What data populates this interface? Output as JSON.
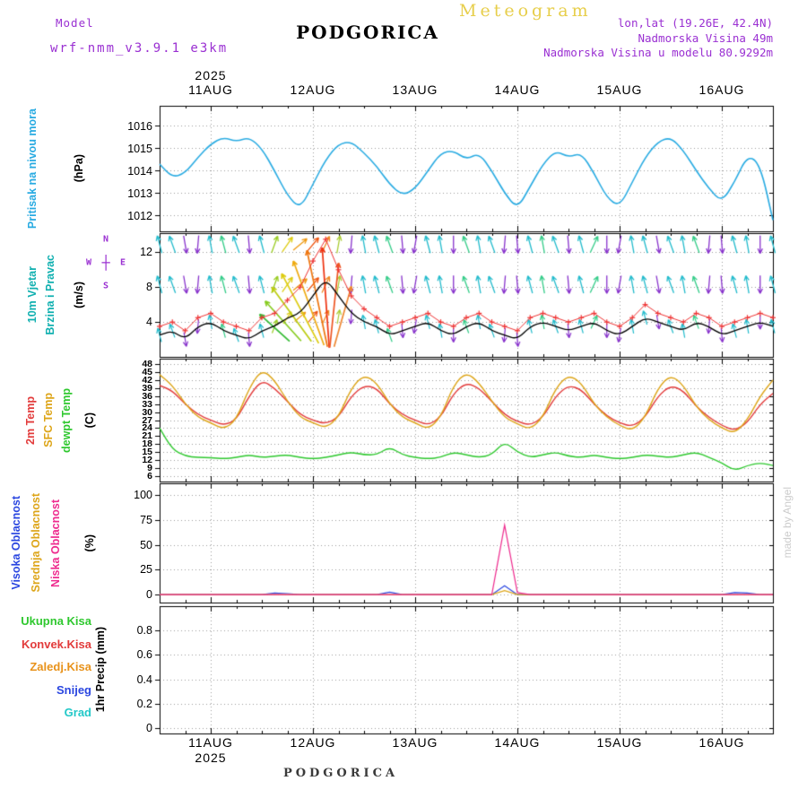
{
  "header": {
    "watermark": "Meteogram",
    "model_label": "Model",
    "model_name": "wrf-nmm_v3.9.1 e3km",
    "station_title": "PODGORICA",
    "info_lines": [
      "lon,lat (19.26E, 42.4N)",
      "Nadmorska Visina 49m",
      "Nadmorska Visina u modelu 80.9292m"
    ],
    "accent_purple": "#9a30d2",
    "watermark_yellow": "#e7ce4a"
  },
  "footer": {
    "year": "2025",
    "station": "PODGORICA"
  },
  "credit": {
    "text": "made by Angel",
    "color": "#cccccc"
  },
  "time_axis": {
    "year": "2025",
    "day_labels": [
      "11AUG",
      "12AUG",
      "13AUG",
      "14AUG",
      "15AUG",
      "16AUG"
    ],
    "day_hours": [
      12,
      36,
      60,
      84,
      108,
      132
    ],
    "hours_total": 144,
    "step_hours": 3
  },
  "chart_data": [
    {
      "id": "pressure",
      "type": "line",
      "ylabel": "Pritisak na nivou mora",
      "unit": "(hPa)",
      "yticks": [
        "1012",
        "1013",
        "1014",
        "1015",
        "1016"
      ],
      "ymin": 1011.3,
      "ymax": 1016.9,
      "series": [
        {
          "name": "pritisak",
          "color": "#29abe2",
          "values": [
            1014.3,
            1013.7,
            1013.9,
            1014.6,
            1015.2,
            1015.5,
            1015.3,
            1015.5,
            1015.0,
            1014.0,
            1012.9,
            1012.3,
            1013.4,
            1014.5,
            1015.2,
            1015.3,
            1014.8,
            1014.2,
            1013.4,
            1012.9,
            1013.2,
            1014.0,
            1014.8,
            1014.9,
            1014.5,
            1014.8,
            1014.0,
            1013.0,
            1012.3,
            1013.3,
            1014.3,
            1014.9,
            1014.6,
            1014.8,
            1013.9,
            1012.8,
            1012.4,
            1013.5,
            1014.6,
            1015.3,
            1015.5,
            1014.9,
            1014.0,
            1013.2,
            1012.6,
            1013.5,
            1014.7,
            1014.3,
            1011.8
          ]
        }
      ]
    },
    {
      "id": "wind",
      "type": "wind",
      "ylabel": "10m Vjetar",
      "ylabel2": "Brzina i Pravac",
      "label_color": "#11b0b0",
      "unit": "(m/s)",
      "compass": {
        "n": "N",
        "e": "E",
        "s": "S",
        "w": "W",
        "glyph": "┼",
        "color": "#9a30d2"
      },
      "yticks": [
        "4",
        "8",
        "12"
      ],
      "ymin": 0,
      "ymax": 14.2,
      "speed": {
        "name": "brzina",
        "color": "#000000",
        "values": [
          2.5,
          3,
          2,
          3.5,
          4,
          3,
          2.5,
          2,
          3,
          3.5,
          4.5,
          5,
          7,
          9,
          7,
          5,
          4,
          3.5,
          2.5,
          3,
          3.5,
          4,
          3,
          2.5,
          3.5,
          4,
          3,
          2.5,
          2,
          3.5,
          4,
          3.5,
          3,
          3.5,
          4,
          3,
          2.5,
          3.5,
          4.5,
          4,
          3.5,
          3,
          4,
          3.5,
          2.5,
          3,
          3.5,
          4,
          3.5
        ]
      },
      "gust": {
        "name": "udari vjetra",
        "color": "#ee3333",
        "values": [
          3.5,
          4,
          3,
          4.5,
          5,
          4,
          3.5,
          3,
          4.5,
          5,
          6.5,
          8,
          11,
          13.5,
          10,
          7,
          5.5,
          4.5,
          3.5,
          4,
          4.5,
          5,
          4,
          3.5,
          4.5,
          5,
          4,
          3.5,
          3,
          4.5,
          5,
          4.5,
          4,
          4.5,
          5,
          4,
          3.5,
          4.5,
          6,
          5,
          4.5,
          4,
          5,
          4.5,
          3.5,
          4,
          4.5,
          5,
          4.5
        ]
      },
      "arrows": {
        "rows_v": [
          12.9,
          8.3
        ],
        "dir": [
          -15,
          -20,
          170,
          185,
          -10,
          -15,
          -20,
          175,
          -15,
          20,
          35,
          50,
          40,
          25,
          10,
          185,
          -10,
          -15,
          -20,
          175,
          190,
          -15,
          -10,
          180,
          -20,
          -10,
          -20,
          185,
          175,
          -15,
          -10,
          -20,
          175,
          -15,
          25,
          180,
          190,
          -10,
          -15,
          170,
          -20,
          -10,
          -20,
          185,
          175,
          -15,
          -10,
          180,
          -15
        ],
        "colors": [
          "#22bbcc",
          "#22bbcc",
          "#8833cc",
          "#8833cc",
          "#22bbcc",
          "#33cc88",
          "#22bbcc",
          "#8833cc",
          "#22bbcc",
          "#99cc22",
          "#ddcc11",
          "#ee9911",
          "#ee5511",
          "#ee8822",
          "#aacc33",
          "#8833cc",
          "#22bbcc",
          "#22bbcc",
          "#33cc88",
          "#8833cc",
          "#8833cc",
          "#22bbcc",
          "#22bbcc",
          "#8833cc",
          "#33cc88",
          "#22bbcc",
          "#22bbcc",
          "#8833cc",
          "#8833cc",
          "#22bbcc",
          "#33cc88",
          "#22bbcc",
          "#8833cc",
          "#22bbcc",
          "#33cc88",
          "#8833cc",
          "#8833cc",
          "#22bbcc",
          "#22bbcc",
          "#8833cc",
          "#22bbcc",
          "#22bbcc",
          "#33cc88",
          "#8833cc",
          "#8833cc",
          "#22bbcc",
          "#22bbcc",
          "#8833cc",
          "#22bbcc"
        ]
      },
      "event_arrows": [
        [
          27,
          -48,
          45,
          "#33bb33"
        ],
        [
          29,
          -42,
          60,
          "#88cc22"
        ],
        [
          31,
          -36,
          75,
          "#bbcc11"
        ],
        [
          33,
          -28,
          88,
          "#ddcc11"
        ],
        [
          35,
          -20,
          100,
          "#eeaa11"
        ],
        [
          37,
          -12,
          110,
          "#ee7711"
        ],
        [
          39,
          -4,
          112,
          "#ee3311"
        ],
        [
          41,
          6,
          95,
          "#ee5522"
        ],
        [
          43,
          16,
          70,
          "#ee8833"
        ]
      ]
    },
    {
      "id": "temperature",
      "type": "line",
      "ylabels": [
        {
          "text": "2m Temp",
          "color": "#e23b3b"
        },
        {
          "text": "SFC Temp",
          "color": "#dda519"
        },
        {
          "text": "dewpt Temp",
          "color": "#2fc82f"
        }
      ],
      "unit": "(C)",
      "yticks": [
        "6",
        "9",
        "12",
        "15",
        "18",
        "21",
        "24",
        "27",
        "30",
        "33",
        "36",
        "39",
        "42",
        "45",
        "48"
      ],
      "ymin": 4,
      "ymax": 50,
      "series": [
        {
          "name": "2m Temp",
          "color": "#e23b3b",
          "values": [
            40,
            38,
            33,
            29,
            27,
            25,
            27,
            36,
            42,
            39,
            34,
            29,
            27,
            25.5,
            28,
            36,
            40,
            39,
            33,
            29,
            27,
            25,
            28,
            37,
            41,
            39,
            34,
            29,
            26.5,
            25,
            28,
            36,
            40,
            38.5,
            33,
            28.5,
            26,
            24.5,
            28,
            36,
            40,
            38,
            32,
            28,
            25,
            23,
            26,
            33,
            37
          ]
        },
        {
          "name": "SFC Temp",
          "color": "#dda519",
          "values": [
            44,
            40,
            33,
            28,
            26,
            23.5,
            27,
            39,
            46,
            42,
            34,
            28,
            26,
            24,
            28,
            39,
            44,
            41,
            33,
            28,
            26,
            23.5,
            28,
            40,
            45,
            41,
            34,
            28,
            25.5,
            23.5,
            28,
            39,
            44,
            41,
            33,
            28,
            25,
            23,
            28,
            39,
            44,
            40,
            32,
            27,
            24,
            22,
            27,
            36,
            42
          ]
        },
        {
          "name": "dewpt Temp",
          "color": "#2fc82f",
          "values": [
            24,
            16,
            13.5,
            13,
            13,
            12.5,
            13,
            14,
            13,
            13.5,
            14,
            13,
            12.5,
            13,
            14,
            15,
            14,
            14,
            17,
            14,
            13,
            12.5,
            13,
            15,
            14,
            13,
            14,
            19,
            15,
            13,
            14,
            15,
            13.5,
            13,
            14,
            13,
            12.5,
            13,
            14,
            13.5,
            13,
            14,
            15,
            13,
            11,
            8,
            10,
            11,
            10
          ]
        }
      ]
    },
    {
      "id": "cloud",
      "type": "line",
      "ylabels": [
        {
          "text": "Visoka Oblacnost",
          "color": "#2a46e0"
        },
        {
          "text": "Srednja Oblacnost",
          "color": "#dda519"
        },
        {
          "text": "Niska Oblacnost",
          "color": "#ee2b8e"
        }
      ],
      "unit": "(%)",
      "yticks": [
        "0",
        "25",
        "50",
        "75",
        "100"
      ],
      "ymin": -8,
      "ymax": 112,
      "series": [
        {
          "name": "Visoka Oblacnost",
          "color": "#2a46e0",
          "values": [
            0,
            0,
            0,
            0,
            0,
            0,
            0,
            0,
            0,
            1.5,
            1,
            0,
            0,
            0,
            0,
            0,
            0,
            0,
            2.5,
            0,
            0,
            0,
            0,
            0,
            0,
            0,
            0,
            9,
            0,
            0,
            0,
            0,
            0,
            0,
            0,
            0,
            0,
            0,
            0,
            0,
            0,
            0,
            0,
            0,
            0,
            2,
            1.5,
            0,
            0
          ]
        },
        {
          "name": "Srednja Oblacnost",
          "color": "#dda519",
          "values": [
            0,
            0,
            0,
            0,
            0,
            0,
            0,
            0,
            0,
            0,
            0,
            0,
            0,
            0,
            0,
            0,
            0,
            0,
            0,
            0,
            0,
            0,
            0,
            0,
            0,
            0,
            0,
            4,
            0,
            0,
            0,
            0,
            0,
            0,
            0,
            0,
            0,
            0,
            0,
            0,
            0,
            0,
            0,
            0,
            0,
            0,
            0,
            0,
            0
          ]
        },
        {
          "name": "Niska Oblacnost",
          "color": "#ee2b8e",
          "values": [
            0,
            0,
            0,
            0,
            0,
            0,
            0,
            0,
            0,
            0,
            0,
            0,
            0,
            0,
            0,
            0,
            0,
            0,
            0,
            0,
            0,
            0,
            0,
            0,
            0,
            0,
            0,
            70,
            2,
            0,
            0,
            0,
            0,
            0,
            0,
            0,
            0,
            0,
            0,
            0,
            0,
            0,
            0,
            0,
            0,
            0,
            0,
            0,
            0
          ]
        }
      ]
    },
    {
      "id": "precip",
      "type": "line",
      "legend": [
        {
          "text": "Ukupna Kisa",
          "color": "#2fc82f"
        },
        {
          "text": "Konvek.Kisa",
          "color": "#e23b3b"
        },
        {
          "text": "Zaledj.Kisa",
          "color": "#e8921a"
        },
        {
          "text": "Snijeg",
          "color": "#2a46e0"
        },
        {
          "text": "Grad",
          "color": "#22c8c8"
        }
      ],
      "unit": "1hr Precip (mm)",
      "yticks": [
        "0",
        "0.2",
        "0.4",
        "0.6",
        "0.8"
      ],
      "ymin": -0.045,
      "ymax": 1.0,
      "series": [
        {
          "name": "Ukupna Kisa",
          "color": "#2fc82f",
          "values_constant": 0
        },
        {
          "name": "Konvek.Kisa",
          "color": "#e23b3b",
          "values_constant": 0
        },
        {
          "name": "Zaledj.Kisa",
          "color": "#e8921a",
          "values_constant": 0
        },
        {
          "name": "Snijeg",
          "color": "#2a46e0",
          "values_constant": 0
        },
        {
          "name": "Grad",
          "color": "#22c8c8",
          "values_constant": 0
        }
      ]
    }
  ]
}
